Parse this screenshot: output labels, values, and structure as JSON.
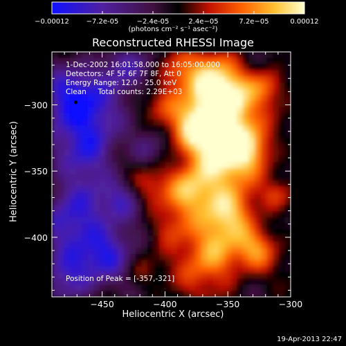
{
  "title": "Reconstructed RHESSI Image",
  "info": {
    "line1": "1-Dec-2002 16:01:58.000 to 16:05:00.000",
    "line2": "Detectors: 4F 5F 6F 7F 8F, Att 0",
    "line3": "Energy Range: 12.0 - 25.0 keV",
    "line4": "Clean     Total counts: 2.29E+03"
  },
  "peak_label": "Position of Peak = [-357,-321]",
  "colorbar": {
    "tick_labels": [
      "-0.00012",
      "-7.2e-05",
      "-2.4e-05",
      "2.4e-05",
      "7.2e-05",
      "0.00012"
    ],
    "unit_label": "(photons cm⁻² s⁻¹ asec⁻²)",
    "colors": [
      "#1010ff",
      "#5020a0",
      "#401040",
      "#000000",
      "#c01000",
      "#ff6000",
      "#ffc030",
      "#ffffd0"
    ]
  },
  "timestamp": "19-Apr-2013 22:47",
  "chart_data": {
    "type": "heatmap",
    "title": "Reconstructed RHESSI Image",
    "xlabel": "Heliocentric X (arcsec)",
    "ylabel": "Heliocentric Y (arcsec)",
    "xlim": [
      -490,
      -300
    ],
    "ylim": [
      -445,
      -260
    ],
    "x_ticks": [
      -450,
      -400,
      -350,
      -300
    ],
    "y_ticks": [
      -300,
      -350,
      -400
    ],
    "x_tick_labels": [
      "−450",
      "−400",
      "−350",
      "−300"
    ],
    "y_tick_labels": [
      "−300",
      "−350",
      "−400"
    ],
    "value_range": [
      -0.00012,
      0.00012
    ],
    "peak_position": [
      -357,
      -321
    ],
    "marker_position": [
      -471,
      -298
    ]
  }
}
